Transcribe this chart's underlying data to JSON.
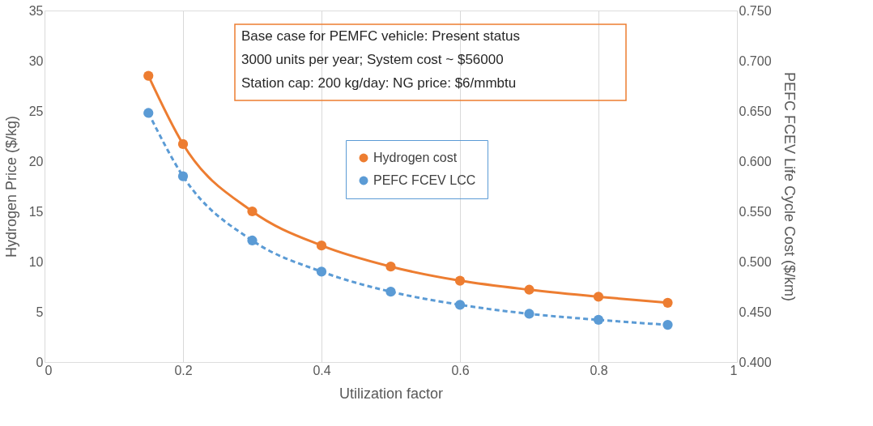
{
  "chart_data": {
    "type": "line",
    "xlabel": "Utilization factor",
    "ylabel": "Hydrogen Price ($/kg)",
    "y2label": "PEFC FCEV Life Cycle Cost ($/km)",
    "x": [
      0.15,
      0.2,
      0.3,
      0.4,
      0.5,
      0.6,
      0.7,
      0.8,
      0.9
    ],
    "series": [
      {
        "name": "Hydrogen cost",
        "color": "#ed7d31",
        "line_style": "solid",
        "values": [
          28.5,
          21.7,
          15.0,
          11.6,
          9.5,
          8.1,
          7.2,
          6.5,
          5.9
        ]
      },
      {
        "name": "PEFC FCEV LCC",
        "color": "#5b9bd5",
        "line_style": "dashed",
        "axis": "y2",
        "values": [
          0.648,
          0.585,
          0.521,
          0.49,
          0.47,
          0.457,
          0.448,
          0.442,
          0.437
        ]
      }
    ],
    "xlim": [
      0,
      1
    ],
    "xticks": [
      0,
      0.2,
      0.4,
      0.6,
      0.8,
      1
    ],
    "ylim": [
      0,
      35
    ],
    "yticks": [
      0,
      5,
      10,
      15,
      20,
      25,
      30,
      35
    ],
    "y2lim": [
      0.4,
      0.75
    ],
    "y2ticks": [
      {
        "value": 0.4,
        "label": "0.400"
      },
      {
        "value": 0.45,
        "label": "0.450"
      },
      {
        "value": 0.5,
        "label": "0.500"
      },
      {
        "value": 0.55,
        "label": "0.550"
      },
      {
        "value": 0.6,
        "label": "0.600"
      },
      {
        "value": 0.65,
        "label": "0.650"
      },
      {
        "value": 0.7,
        "label": "0.700"
      },
      {
        "value": 0.75,
        "label": "0.750"
      }
    ],
    "annotations": [
      "Base case for PEMFC vehicle: Present status",
      "3000 units per year;  System cost ~ $56000",
      "Station cap: 200 kg/day: NG price: $6/mmbtu"
    ],
    "grid": "x",
    "legend": "right",
    "marker": "circle"
  }
}
